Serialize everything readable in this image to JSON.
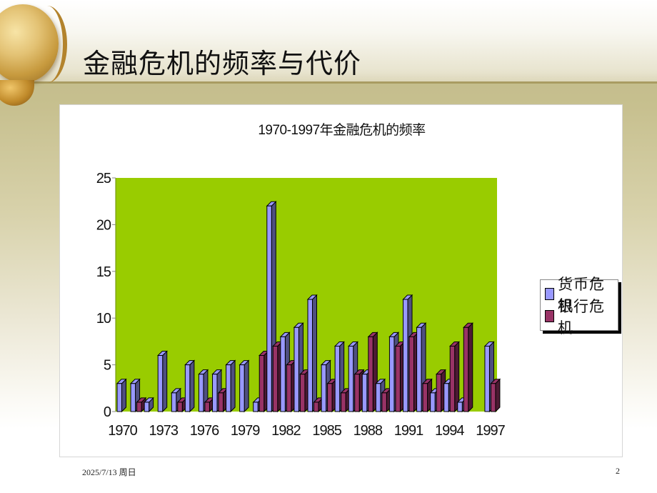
{
  "slide": {
    "title": "金融危机的频率与代价",
    "footer_date": "2025/7/13 周日",
    "page_number": "2"
  },
  "colors": {
    "plot_background": "#99cc00",
    "currency_front": "#9999ff",
    "currency_side": "#4f4f80",
    "bank_front": "#993366",
    "bank_side": "#4d1a33"
  },
  "chart_data": {
    "type": "bar",
    "title": "1970-1997年金融危机的频率",
    "xlabel": "",
    "ylabel": "",
    "ylim": [
      0,
      25
    ],
    "yticks": [
      0,
      5,
      10,
      15,
      20,
      25
    ],
    "grid": false,
    "legend_position": "right",
    "categories": [
      "1970",
      "1971",
      "1972",
      "1973",
      "1974",
      "1975",
      "1976",
      "1977",
      "1978",
      "1979",
      "1980",
      "1981",
      "1982",
      "1983",
      "1984",
      "1985",
      "1986",
      "1987",
      "1988",
      "1989",
      "1990",
      "1991",
      "1992",
      "1993",
      "1994",
      "1995",
      "1996",
      "1997"
    ],
    "xtick_labels": [
      "1970",
      "1973",
      "1976",
      "1979",
      "1982",
      "1985",
      "1988",
      "1991",
      "1994",
      "1997"
    ],
    "series": [
      {
        "name": "货币危机",
        "color": "#9999ff",
        "values": [
          3,
          3,
          1,
          6,
          2,
          5,
          4,
          4,
          5,
          5,
          1,
          22,
          8,
          9,
          12,
          5,
          7,
          7,
          4,
          3,
          8,
          12,
          9,
          2,
          3,
          1,
          0,
          7
        ]
      },
      {
        "name": "银行危机",
        "color": "#993366",
        "values": [
          0,
          1,
          0,
          0,
          1,
          0,
          1,
          2,
          0,
          0,
          6,
          7,
          5,
          4,
          1,
          3,
          2,
          4,
          8,
          2,
          7,
          8,
          3,
          4,
          7,
          9,
          0,
          3
        ]
      }
    ]
  }
}
